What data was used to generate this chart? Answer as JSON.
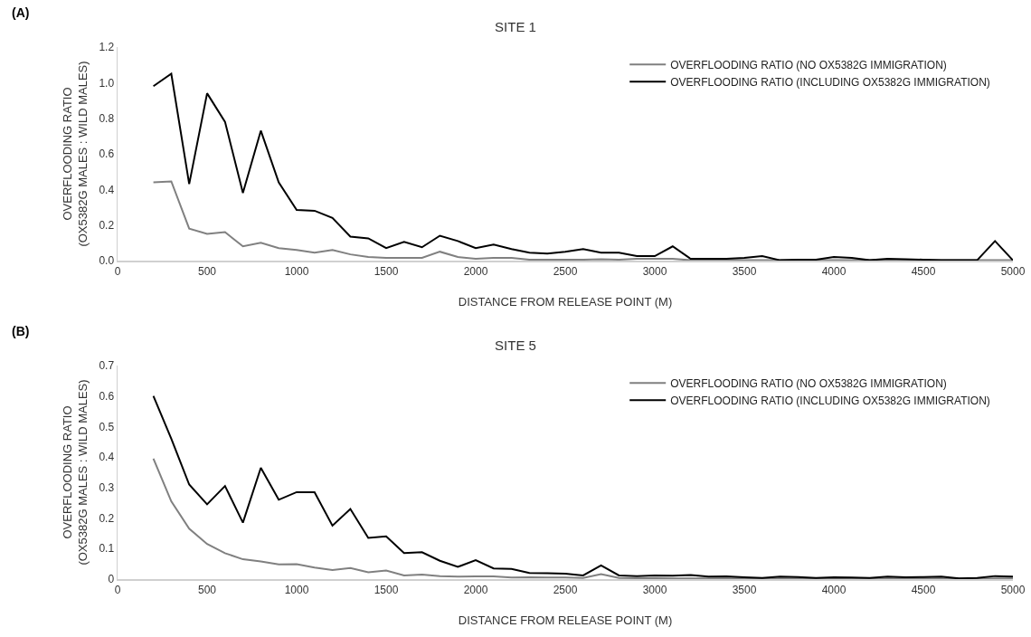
{
  "chart_data": [
    {
      "type": "line",
      "title": "SITE 1",
      "xlabel": "DISTANCE FROM RELEASE POINT (M)",
      "ylabel": "OVERFLOODING RATIO\n(OX5382G MALES : WILD MALES)",
      "annotations": [
        "(A)"
      ],
      "x": [
        200,
        300,
        400,
        500,
        600,
        700,
        800,
        900,
        1000,
        1100,
        1200,
        1300,
        1400,
        1500,
        1600,
        1700,
        1800,
        1900,
        2000,
        2100,
        2200,
        2300,
        2400,
        2500,
        2600,
        2700,
        2800,
        2900,
        3000,
        3100,
        3200,
        3300,
        3400,
        3500,
        3600,
        3700,
        3800,
        3900,
        4000,
        4100,
        4200,
        4300,
        4400,
        4500,
        4600,
        4700,
        4800,
        4900,
        5000
      ],
      "series": [
        {
          "name": "OVERFLOODING RATIO (NO OX5382G IMMIGRATION)",
          "color": "#808080",
          "values": [
            0.44,
            0.445,
            0.18,
            0.15,
            0.16,
            0.08,
            0.1,
            0.07,
            0.06,
            0.045,
            0.06,
            0.035,
            0.02,
            0.015,
            0.015,
            0.015,
            0.05,
            0.02,
            0.01,
            0.015,
            0.015,
            0.005,
            0.005,
            0.005,
            0.005,
            0.008,
            0.005,
            0.01,
            0.01,
            0.01,
            0.002,
            0.002,
            0.002,
            0.002,
            0.002,
            0.002,
            0.002,
            0.002,
            0.002,
            0.002,
            0.002,
            0.002,
            0.002,
            0.002,
            0.002,
            0.002,
            0.002,
            0.002,
            0.002
          ]
        },
        {
          "name": "OVERFLOODING RATIO (INCLUDING OX5382G IMMIGRATION)",
          "color": "#000000",
          "values": [
            0.98,
            1.05,
            0.43,
            0.94,
            0.78,
            0.38,
            0.73,
            0.44,
            0.285,
            0.28,
            0.24,
            0.135,
            0.125,
            0.07,
            0.105,
            0.075,
            0.14,
            0.11,
            0.07,
            0.09,
            0.065,
            0.045,
            0.04,
            0.05,
            0.065,
            0.045,
            0.045,
            0.025,
            0.025,
            0.08,
            0.01,
            0.01,
            0.01,
            0.015,
            0.025,
            0.002,
            0.005,
            0.005,
            0.02,
            0.015,
            0.002,
            0.01,
            0.008,
            0.005,
            0.002,
            0.002,
            0.002,
            0.11,
            0.002
          ]
        }
      ],
      "xlim": [
        0,
        5000
      ],
      "xticks": [
        0,
        500,
        1000,
        1500,
        2000,
        2500,
        3000,
        3500,
        4000,
        4500,
        5000
      ],
      "ylim": [
        0,
        1.2
      ],
      "yticks": [
        {
          "value": 0,
          "label": "0.0"
        },
        {
          "value": 0.2,
          "label": "0.2"
        },
        {
          "value": 0.4,
          "label": "0.4"
        },
        {
          "value": 0.6,
          "label": "0.6"
        },
        {
          "value": 0.8,
          "label": "0.8"
        },
        {
          "value": 1,
          "label": "1.0"
        },
        {
          "value": 1.2,
          "label": "1.2"
        }
      ],
      "grid": false,
      "legend": "top right",
      "marker": "none",
      "line_style": "solid"
    },
    {
      "type": "line",
      "title": "SITE 5",
      "xlabel": "DISTANCE FROM RELEASE POINT (M)",
      "ylabel": "OVERFLOODING RATIO\n(OX5382G MALES : WILD MALES)",
      "annotations": [
        "(B)"
      ],
      "x": [
        200,
        300,
        400,
        500,
        600,
        700,
        800,
        900,
        1000,
        1100,
        1200,
        1300,
        1400,
        1500,
        1600,
        1700,
        1800,
        1900,
        2000,
        2100,
        2200,
        2300,
        2400,
        2500,
        2600,
        2700,
        2800,
        2900,
        3000,
        3100,
        3200,
        3300,
        3400,
        3500,
        3600,
        3700,
        3800,
        3900,
        4000,
        4100,
        4200,
        4300,
        4400,
        4500,
        4600,
        4700,
        4800,
        4900,
        5000
      ],
      "series": [
        {
          "name": "OVERFLOODING RATIO (NO OX5382G IMMIGRATION)",
          "color": "#808080",
          "values": [
            0.395,
            0.255,
            0.165,
            0.115,
            0.085,
            0.065,
            0.058,
            0.048,
            0.049,
            0.038,
            0.03,
            0.036,
            0.022,
            0.028,
            0.012,
            0.015,
            0.01,
            0.008,
            0.009,
            0.009,
            0.005,
            0.006,
            0.005,
            0.005,
            0.004,
            0.016,
            0.004,
            0.003,
            0.003,
            0.002,
            0.002,
            0.002,
            0.002,
            0.002,
            0.002,
            0.002,
            0.002,
            0.002,
            0.002,
            0.002,
            0.002,
            0.002,
            0.002,
            0.002,
            0.002,
            0.002,
            0.002,
            0.002,
            0.002
          ]
        },
        {
          "name": "OVERFLOODING RATIO (INCLUDING OX5382G IMMIGRATION)",
          "color": "#000000",
          "values": [
            0.6,
            0.46,
            0.31,
            0.245,
            0.305,
            0.185,
            0.365,
            0.26,
            0.285,
            0.285,
            0.175,
            0.23,
            0.135,
            0.14,
            0.085,
            0.088,
            0.06,
            0.04,
            0.062,
            0.035,
            0.033,
            0.02,
            0.019,
            0.018,
            0.012,
            0.045,
            0.012,
            0.01,
            0.012,
            0.011,
            0.013,
            0.008,
            0.009,
            0.006,
            0.004,
            0.008,
            0.007,
            0.004,
            0.006,
            0.005,
            0.004,
            0.008,
            0.006,
            0.007,
            0.008,
            0.002,
            0.004,
            0.01,
            0.008
          ]
        }
      ],
      "xlim": [
        0,
        5000
      ],
      "xticks": [
        0,
        500,
        1000,
        1500,
        2000,
        2500,
        3000,
        3500,
        4000,
        4500,
        5000
      ],
      "ylim": [
        0,
        0.7
      ],
      "yticks": [
        0,
        0.1,
        0.2,
        0.3,
        0.4,
        0.5,
        0.6,
        0.7
      ],
      "grid": false,
      "legend": "top right",
      "marker": "none",
      "line_style": "solid"
    }
  ]
}
